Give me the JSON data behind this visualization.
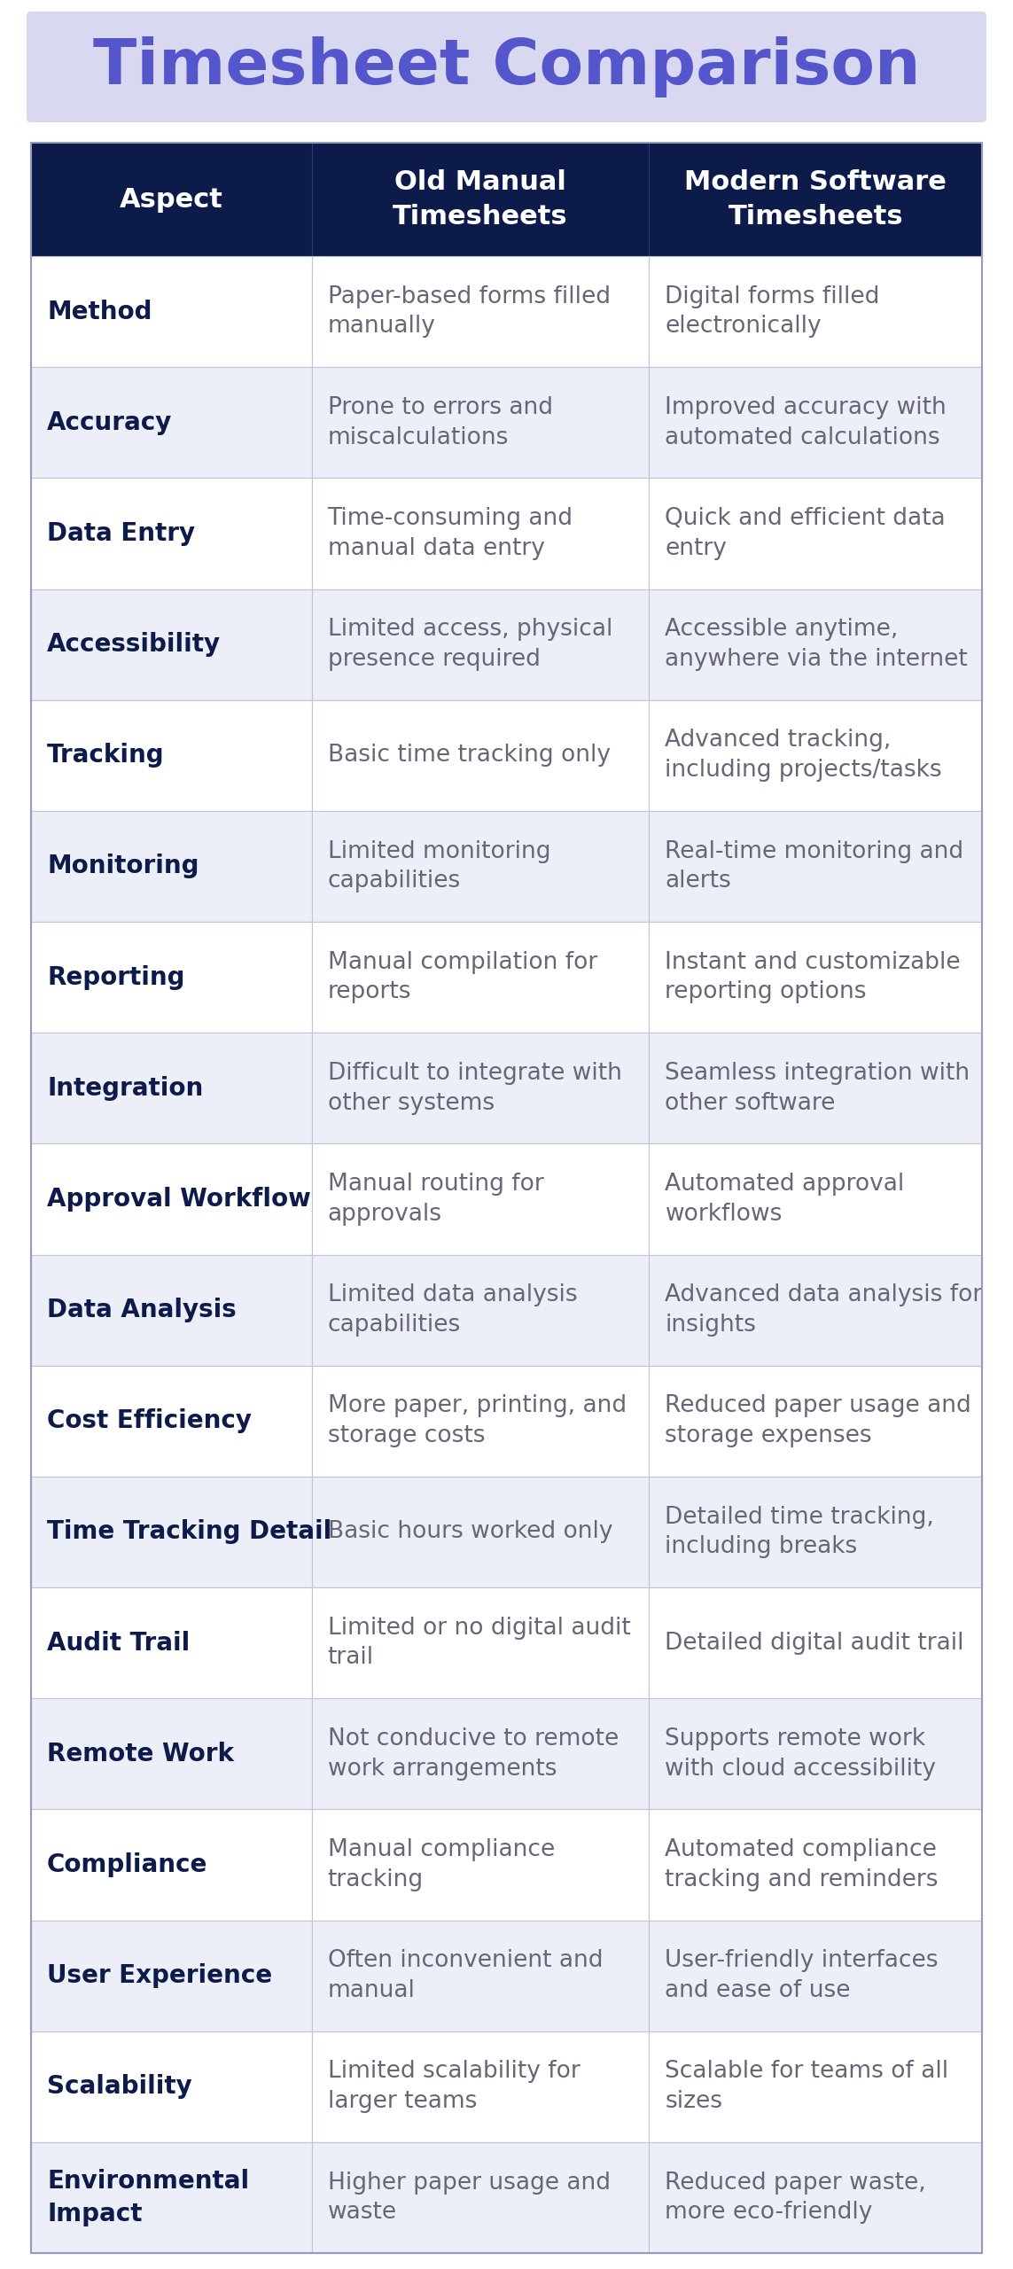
{
  "title": "Timesheet Comparison",
  "title_color": "#5555cc",
  "title_bg_color": "#d8d8f0",
  "header_bg": "#0d1b4b",
  "header_text_color": "#ffffff",
  "col_headers": [
    "Aspect",
    "Old Manual\nTimesheets",
    "Modern Software\nTimesheets"
  ],
  "odd_row_bg": "#ffffff",
  "even_row_bg": "#eceef8",
  "aspect_text_color": "#0d1b4b",
  "data_text_color": "#666677",
  "border_color": "#c0c4d8",
  "rows": [
    {
      "aspect": "Method",
      "old": "Paper-based forms filled\nmanually",
      "new": "Digital forms filled\nelectronically"
    },
    {
      "aspect": "Accuracy",
      "old": "Prone to errors and\nmiscalculations",
      "new": "Improved accuracy with\nautomated calculations"
    },
    {
      "aspect": "Data Entry",
      "old": "Time-consuming and\nmanual data entry",
      "new": "Quick and efficient data\nentry"
    },
    {
      "aspect": "Accessibility",
      "old": "Limited access, physical\npresence required",
      "new": "Accessible anytime,\nanywhere via the internet"
    },
    {
      "aspect": "Tracking",
      "old": "Basic time tracking only",
      "new": "Advanced tracking,\nincluding projects/tasks"
    },
    {
      "aspect": "Monitoring",
      "old": "Limited monitoring\ncapabilities",
      "new": "Real-time monitoring and\nalerts"
    },
    {
      "aspect": "Reporting",
      "old": "Manual compilation for\nreports",
      "new": "Instant and customizable\nreporting options"
    },
    {
      "aspect": "Integration",
      "old": "Difficult to integrate with\nother systems",
      "new": "Seamless integration with\nother software"
    },
    {
      "aspect": "Approval Workflow",
      "old": "Manual routing for\napprovals",
      "new": "Automated approval\nworkflows"
    },
    {
      "aspect": "Data Analysis",
      "old": "Limited data analysis\ncapabilities",
      "new": "Advanced data analysis for\ninsights"
    },
    {
      "aspect": "Cost Efficiency",
      "old": "More paper, printing, and\nstorage costs",
      "new": "Reduced paper usage and\nstorage expenses"
    },
    {
      "aspect": "Time Tracking Detail",
      "old": "Basic hours worked only",
      "new": "Detailed time tracking,\nincluding breaks"
    },
    {
      "aspect": "Audit Trail",
      "old": "Limited or no digital audit\ntrail",
      "new": "Detailed digital audit trail"
    },
    {
      "aspect": "Remote Work",
      "old": "Not conducive to remote\nwork arrangements",
      "new": "Supports remote work\nwith cloud accessibility"
    },
    {
      "aspect": "Compliance",
      "old": "Manual compliance\ntracking",
      "new": "Automated compliance\ntracking and reminders"
    },
    {
      "aspect": "User Experience",
      "old": "Often inconvenient and\nmanual",
      "new": "User-friendly interfaces\nand ease of use"
    },
    {
      "aspect": "Scalability",
      "old": "Limited scalability for\nlarger teams",
      "new": "Scalable for teams of all\nsizes"
    },
    {
      "aspect": "Environmental\nImpact",
      "old": "Higher paper usage and\nwaste",
      "new": "Reduced paper waste,\nmore eco-friendly"
    }
  ],
  "fig_width": 11.43,
  "fig_height": 25.6,
  "dpi": 100
}
